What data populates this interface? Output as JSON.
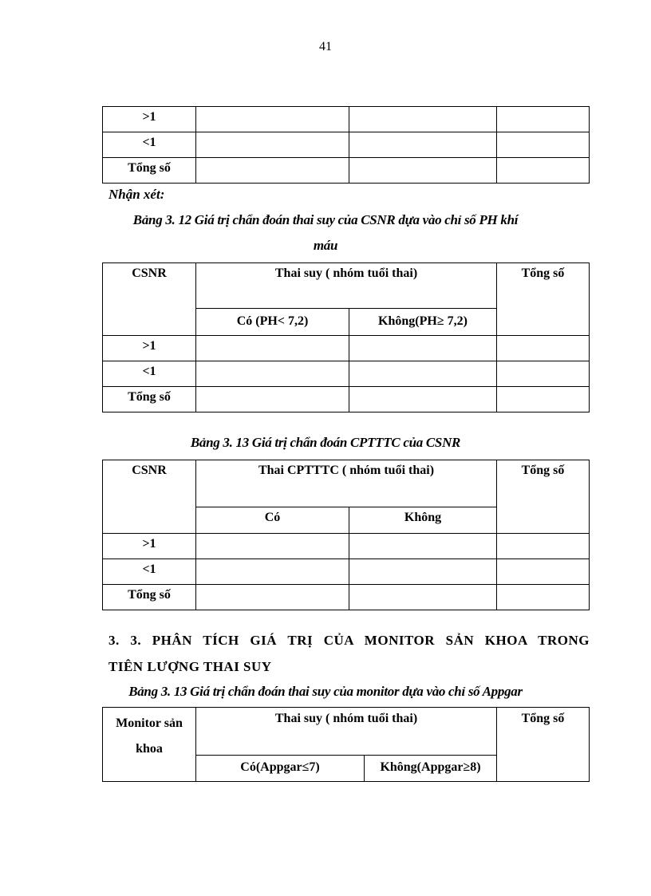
{
  "page_number": "41",
  "table_top": {
    "rows": [
      ">1",
      "<1",
      "Tổng số"
    ]
  },
  "remark": "Nhận xét:",
  "table_3_12": {
    "caption_line1": "Bảng 3. 12 Giá trị chẩn đoán thai suy của CSNR dựa vào chỉ số PH khí",
    "caption_line2": "máu",
    "col1": "CSNR",
    "group": "Thai suy ( nhóm tuổi thai)",
    "sub1": "Có (PH< 7,2)",
    "sub2": "Không(PH≥ 7,2)",
    "total": "Tổng số",
    "rows": [
      ">1",
      "<1",
      "Tổng số"
    ]
  },
  "table_3_13a": {
    "caption": "Bảng 3. 13 Giá trị chẩn đoán CPTTTC của CSNR",
    "col1": "CSNR",
    "group": "Thai CPTTTC ( nhóm tuổi thai)",
    "sub1": "Có",
    "sub2": "Không",
    "total": "Tổng số",
    "rows": [
      ">1",
      "<1",
      "Tổng số"
    ]
  },
  "section": {
    "line1": "3. 3. PHÂN TÍCH GIÁ TRỊ CỦA MONITOR SẢN KHOA  TRONG",
    "line2": "TIÊN LƯỢNG THAI SUY"
  },
  "table_3_13b": {
    "caption": "Bảng 3. 13 Giá trị chẩn đoán thai suy của monitor dựa vào chỉ số Appgar",
    "col1_line1": "Monitor sản",
    "col1_line2": "khoa",
    "group": "Thai suy ( nhóm tuổi thai)",
    "sub1": "Có(Appgar≤7)",
    "sub2": "Không(Appgar≥8)",
    "total": "Tổng số"
  }
}
